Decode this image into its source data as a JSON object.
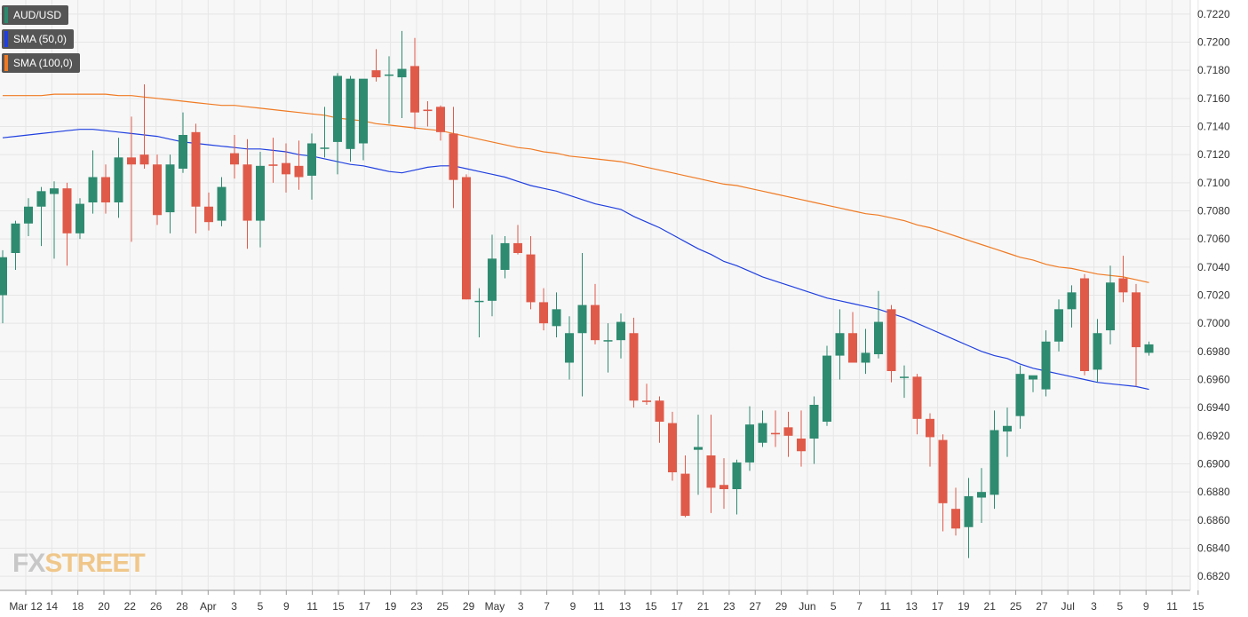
{
  "legend": [
    {
      "label": "AUD/USD",
      "color": "#2b8a6e"
    },
    {
      "label": "SMA (50,0)",
      "color": "#1f3fe0"
    },
    {
      "label": "SMA (100,0)",
      "color": "#f07a22"
    }
  ],
  "logo": {
    "part1": "FX",
    "part2": "STREET"
  },
  "colors": {
    "up": "#2e8b70",
    "down": "#e05a49",
    "sma50": "#1f3fe0",
    "sma100": "#f07a22"
  },
  "chart_data": {
    "type": "candlestick",
    "title": "",
    "ylim": [
      0.681,
      0.723
    ],
    "yticks": [
      "0.6820",
      "0.6840",
      "0.6860",
      "0.6880",
      "0.6900",
      "0.6920",
      "0.6940",
      "0.6960",
      "0.6980",
      "0.7000",
      "0.7020",
      "0.7040",
      "0.7060",
      "0.7080",
      "0.7100",
      "0.7120",
      "0.7140",
      "0.7160",
      "0.7180",
      "0.7200",
      "0.7220"
    ],
    "xticks": [
      "Mar 12",
      "14",
      "18",
      "20",
      "22",
      "26",
      "28",
      "Apr",
      "3",
      "5",
      "9",
      "11",
      "15",
      "17",
      "19",
      "23",
      "25",
      "29",
      "May",
      "3",
      "7",
      "9",
      "11",
      "13",
      "15",
      "17",
      "21",
      "23",
      "27",
      "29",
      "Jun",
      "5",
      "7",
      "11",
      "13",
      "17",
      "19",
      "21",
      "25",
      "27",
      "Jul",
      "3",
      "5",
      "9",
      "11",
      "15"
    ],
    "ohlc": [
      [
        0.702,
        0.7052,
        0.7,
        0.7047
      ],
      [
        0.705,
        0.7073,
        0.7038,
        0.7071
      ],
      [
        0.7071,
        0.7089,
        0.7062,
        0.7083
      ],
      [
        0.7083,
        0.7097,
        0.7055,
        0.7094
      ],
      [
        0.7092,
        0.7101,
        0.7046,
        0.7096
      ],
      [
        0.7096,
        0.71,
        0.7041,
        0.7064
      ],
      [
        0.7064,
        0.7089,
        0.706,
        0.7085
      ],
      [
        0.7086,
        0.7123,
        0.7078,
        0.7104
      ],
      [
        0.7104,
        0.7113,
        0.7078,
        0.7086
      ],
      [
        0.7086,
        0.7132,
        0.7075,
        0.7118
      ],
      [
        0.7118,
        0.7147,
        0.7058,
        0.7113
      ],
      [
        0.712,
        0.717,
        0.711,
        0.7113
      ],
      [
        0.7113,
        0.712,
        0.707,
        0.7077
      ],
      [
        0.7079,
        0.712,
        0.7064,
        0.7113
      ],
      [
        0.711,
        0.715,
        0.7107,
        0.7134
      ],
      [
        0.7136,
        0.7142,
        0.7064,
        0.7083
      ],
      [
        0.7083,
        0.7093,
        0.7066,
        0.7072
      ],
      [
        0.7073,
        0.7104,
        0.7069,
        0.7097
      ],
      [
        0.7121,
        0.7134,
        0.7103,
        0.7113
      ],
      [
        0.7113,
        0.7131,
        0.7053,
        0.7073
      ],
      [
        0.7073,
        0.7122,
        0.7054,
        0.7112
      ],
      [
        0.7113,
        0.7132,
        0.71,
        0.7112
      ],
      [
        0.7114,
        0.7128,
        0.7093,
        0.7106
      ],
      [
        0.7112,
        0.713,
        0.7095,
        0.7104
      ],
      [
        0.7105,
        0.7135,
        0.7088,
        0.7128
      ],
      [
        0.7125,
        0.7154,
        0.7118,
        0.7125
      ],
      [
        0.7129,
        0.7178,
        0.7106,
        0.7176
      ],
      [
        0.7124,
        0.7176,
        0.7115,
        0.7174
      ],
      [
        0.7128,
        0.7173,
        0.7116,
        0.7174
      ],
      [
        0.718,
        0.7195,
        0.7172,
        0.7175
      ],
      [
        0.7177,
        0.719,
        0.7142,
        0.7177
      ],
      [
        0.7175,
        0.7208,
        0.7146,
        0.7181
      ],
      [
        0.7183,
        0.7203,
        0.7138,
        0.715
      ],
      [
        0.7152,
        0.7158,
        0.714,
        0.7151
      ],
      [
        0.7154,
        0.7155,
        0.713,
        0.7136
      ],
      [
        0.7135,
        0.7154,
        0.7082,
        0.7102
      ],
      [
        0.7104,
        0.7106,
        0.7017,
        0.7017
      ],
      [
        0.7016,
        0.7025,
        0.699,
        0.7016
      ],
      [
        0.7016,
        0.7063,
        0.7005,
        0.7046
      ],
      [
        0.7038,
        0.7062,
        0.7032,
        0.7057
      ],
      [
        0.7057,
        0.707,
        0.7049,
        0.705
      ],
      [
        0.7049,
        0.7062,
        0.701,
        0.7015
      ],
      [
        0.7015,
        0.7025,
        0.6995,
        0.7
      ],
      [
        0.6998,
        0.7022,
        0.699,
        0.701
      ],
      [
        0.6972,
        0.7005,
        0.696,
        0.6993
      ],
      [
        0.6993,
        0.705,
        0.6948,
        0.7013
      ],
      [
        0.7013,
        0.7028,
        0.6985,
        0.6988
      ],
      [
        0.6988,
        0.7,
        0.6965,
        0.6988
      ],
      [
        0.6988,
        0.7007,
        0.6975,
        0.7001
      ],
      [
        0.6993,
        0.7004,
        0.694,
        0.6945
      ],
      [
        0.6945,
        0.6957,
        0.6942,
        0.6944
      ],
      [
        0.6945,
        0.6948,
        0.6915,
        0.693
      ],
      [
        0.6929,
        0.6937,
        0.6888,
        0.6894
      ],
      [
        0.6893,
        0.6906,
        0.6862,
        0.6863
      ],
      [
        0.691,
        0.6935,
        0.6878,
        0.6912
      ],
      [
        0.6906,
        0.6935,
        0.6865,
        0.6883
      ],
      [
        0.6885,
        0.6904,
        0.6868,
        0.6882
      ],
      [
        0.6882,
        0.6903,
        0.6864,
        0.6901
      ],
      [
        0.6901,
        0.6941,
        0.6895,
        0.6928
      ],
      [
        0.6915,
        0.6938,
        0.6912,
        0.6929
      ],
      [
        0.6922,
        0.6938,
        0.6912,
        0.6921
      ],
      [
        0.6926,
        0.6937,
        0.6905,
        0.692
      ],
      [
        0.6918,
        0.6938,
        0.6898,
        0.6909
      ],
      [
        0.6918,
        0.6948,
        0.69,
        0.6942
      ],
      [
        0.693,
        0.6984,
        0.6927,
        0.6977
      ],
      [
        0.6977,
        0.701,
        0.696,
        0.6993
      ],
      [
        0.6993,
        0.7008,
        0.6972,
        0.6972
      ],
      [
        0.6972,
        0.6996,
        0.6964,
        0.6979
      ],
      [
        0.6978,
        0.7023,
        0.6975,
        0.7001
      ],
      [
        0.701,
        0.7013,
        0.6958,
        0.6966
      ],
      [
        0.6962,
        0.697,
        0.6947,
        0.6962
      ],
      [
        0.6962,
        0.6964,
        0.6921,
        0.6932
      ],
      [
        0.6932,
        0.6936,
        0.6898,
        0.6919
      ],
      [
        0.6917,
        0.6921,
        0.6852,
        0.6872
      ],
      [
        0.6868,
        0.6883,
        0.6849,
        0.6854
      ],
      [
        0.6855,
        0.689,
        0.6833,
        0.6877
      ],
      [
        0.6876,
        0.6897,
        0.6858,
        0.688
      ],
      [
        0.6878,
        0.6938,
        0.6868,
        0.6924
      ],
      [
        0.6923,
        0.694,
        0.6905,
        0.6927
      ],
      [
        0.6934,
        0.697,
        0.6925,
        0.6964
      ],
      [
        0.696,
        0.6962,
        0.6951,
        0.6963
      ],
      [
        0.6953,
        0.6995,
        0.6948,
        0.6987
      ],
      [
        0.6987,
        0.7017,
        0.698,
        0.701
      ],
      [
        0.701,
        0.7027,
        0.6997,
        0.7022
      ],
      [
        0.7032,
        0.7035,
        0.6963,
        0.6966
      ],
      [
        0.6967,
        0.7003,
        0.6958,
        0.6993
      ],
      [
        0.6995,
        0.7041,
        0.6985,
        0.7029
      ],
      [
        0.7032,
        0.7048,
        0.7015,
        0.7022
      ],
      [
        0.7022,
        0.7028,
        0.6955,
        0.6983
      ],
      [
        0.6979,
        0.6987,
        0.6977,
        0.6985
      ]
    ],
    "sma50": [
      0.7132,
      0.7133,
      0.7134,
      0.7135,
      0.7136,
      0.7137,
      0.7138,
      0.7138,
      0.7137,
      0.7136,
      0.7135,
      0.7134,
      0.7133,
      0.7131,
      0.7129,
      0.7128,
      0.7127,
      0.7126,
      0.7125,
      0.7124,
      0.7124,
      0.7123,
      0.7122,
      0.712,
      0.7119,
      0.7117,
      0.7115,
      0.7113,
      0.7112,
      0.711,
      0.7108,
      0.7107,
      0.7109,
      0.7111,
      0.7112,
      0.7112,
      0.711,
      0.7108,
      0.7106,
      0.7104,
      0.7101,
      0.7098,
      0.7096,
      0.7094,
      0.7091,
      0.7088,
      0.7085,
      0.7083,
      0.7081,
      0.7076,
      0.7072,
      0.7068,
      0.7063,
      0.7058,
      0.7053,
      0.7049,
      0.7044,
      0.7041,
      0.7037,
      0.7033,
      0.703,
      0.7027,
      0.7024,
      0.7021,
      0.7018,
      0.7016,
      0.7014,
      0.7012,
      0.701,
      0.7007,
      0.7004,
      0.7,
      0.6996,
      0.6992,
      0.6988,
      0.6984,
      0.698,
      0.6977,
      0.6975,
      0.6971,
      0.6968,
      0.6966,
      0.6964,
      0.6962,
      0.696,
      0.6958,
      0.6957,
      0.6956,
      0.6955,
      0.6953
    ],
    "sma100": [
      0.7162,
      0.7162,
      0.7162,
      0.7162,
      0.7163,
      0.7163,
      0.7163,
      0.7163,
      0.7163,
      0.7162,
      0.7162,
      0.7161,
      0.716,
      0.7159,
      0.7158,
      0.7157,
      0.7156,
      0.7155,
      0.7155,
      0.7154,
      0.7153,
      0.7152,
      0.7151,
      0.715,
      0.7149,
      0.7148,
      0.7146,
      0.7145,
      0.7144,
      0.7142,
      0.7141,
      0.714,
      0.7139,
      0.7138,
      0.7137,
      0.7135,
      0.7133,
      0.7131,
      0.7129,
      0.7127,
      0.7125,
      0.7124,
      0.7122,
      0.7121,
      0.7119,
      0.7118,
      0.7117,
      0.7116,
      0.7115,
      0.7113,
      0.7111,
      0.7109,
      0.7107,
      0.7105,
      0.7103,
      0.7101,
      0.7099,
      0.7098,
      0.7096,
      0.7094,
      0.7092,
      0.709,
      0.7088,
      0.7086,
      0.7084,
      0.7082,
      0.708,
      0.7078,
      0.7077,
      0.7075,
      0.7073,
      0.707,
      0.7068,
      0.7065,
      0.7062,
      0.7059,
      0.7056,
      0.7053,
      0.705,
      0.7047,
      0.7045,
      0.7042,
      0.704,
      0.7039,
      0.7037,
      0.7035,
      0.7034,
      0.7033,
      0.7031,
      0.7029
    ]
  }
}
